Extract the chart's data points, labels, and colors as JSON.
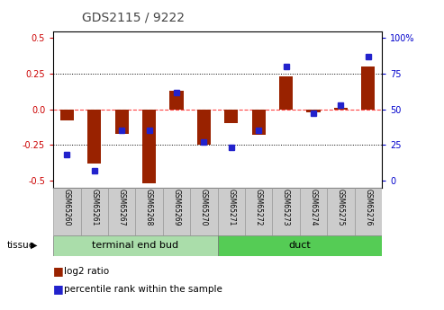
{
  "title": "GDS2115 / 9222",
  "samples": [
    "GSM65260",
    "GSM65261",
    "GSM65267",
    "GSM65268",
    "GSM65269",
    "GSM65270",
    "GSM65271",
    "GSM65272",
    "GSM65273",
    "GSM65274",
    "GSM65275",
    "GSM65276"
  ],
  "log2_ratio": [
    -0.08,
    -0.38,
    -0.17,
    -0.52,
    0.13,
    -0.25,
    -0.1,
    -0.18,
    0.23,
    -0.02,
    0.01,
    0.3
  ],
  "percentile_rank": [
    18,
    7,
    35,
    35,
    62,
    27,
    23,
    35,
    80,
    47,
    53,
    87
  ],
  "tissue_groups": [
    {
      "label": "terminal end bud",
      "start": 0,
      "end": 6,
      "color": "#aaddaa"
    },
    {
      "label": "duct",
      "start": 6,
      "end": 12,
      "color": "#55cc55"
    }
  ],
  "ylim": [
    -0.55,
    0.55
  ],
  "yticks_left": [
    -0.5,
    -0.25,
    0.0,
    0.25,
    0.5
  ],
  "bar_color": "#992200",
  "dot_color": "#2222CC",
  "zero_line_color": "#FF4444",
  "grid_color": "#000000",
  "label_color_left": "#CC0000",
  "label_color_right": "#0000CC",
  "title_color": "#444444",
  "bar_width": 0.5,
  "dot_size": 5
}
